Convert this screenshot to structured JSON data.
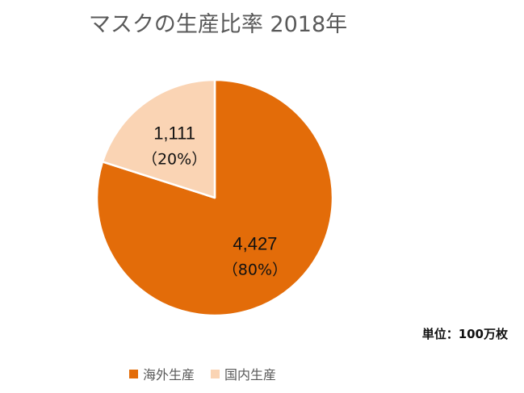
{
  "chart_data": {
    "type": "pie",
    "title": "マスクの生産比率 2018年",
    "unit_note": "単位：100万枚",
    "slices": [
      {
        "label": "海外生産",
        "value": 4427,
        "value_label": "4,427",
        "percent_label": "（80%）",
        "color": "#E36C09"
      },
      {
        "label": "国内生産",
        "value": 1111,
        "value_label": "1,111",
        "percent_label": "（20%）",
        "color": "#FAD4B4"
      }
    ],
    "legend_position": "bottom",
    "slice_border_color": "#FFFFFF"
  }
}
